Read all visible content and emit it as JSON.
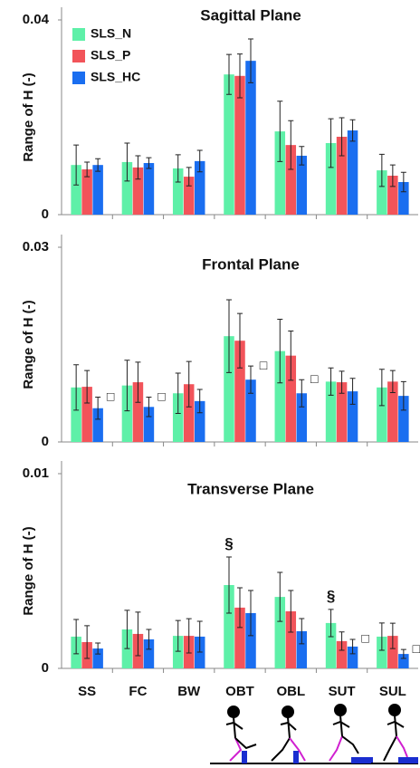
{
  "chart_data": [
    {
      "type": "bar",
      "title": "Sagittal Plane",
      "ylabel": "Range of H (-)",
      "ylim": [
        0,
        0.04
      ],
      "yticks": [
        0,
        0.04
      ],
      "series": [
        {
          "name": "SLS_N",
          "color": "#5ef0a8",
          "values": [
            0.0102,
            0.0108,
            0.0095,
            0.0288,
            0.0171,
            0.0147,
            0.0091
          ],
          "errors": [
            0.0041,
            0.0039,
            0.0028,
            0.0041,
            0.0062,
            0.005,
            0.0033
          ]
        },
        {
          "name": "SLS_P",
          "color": "#f2545a",
          "values": [
            0.0093,
            0.0097,
            0.0078,
            0.0285,
            0.0143,
            0.016,
            0.008
          ],
          "errors": [
            0.0015,
            0.0024,
            0.0019,
            0.0045,
            0.005,
            0.0039,
            0.0022
          ]
        },
        {
          "name": "SLS_HC",
          "color": "#1a6ef0",
          "values": [
            0.0102,
            0.0106,
            0.011,
            0.0316,
            0.0121,
            0.0173,
            0.0067
          ],
          "errors": [
            0.0013,
            0.0011,
            0.0022,
            0.0045,
            0.0019,
            0.0022,
            0.002
          ]
        }
      ]
    },
    {
      "type": "bar",
      "title": "Frontal Plane",
      "ylabel": "Range of H (-)",
      "ylim": [
        0,
        0.03
      ],
      "yticks": [
        0,
        0.03
      ],
      "series": [
        {
          "color": "#5ef0a8",
          "values": [
            0.0084,
            0.0087,
            0.0075,
            0.0163,
            0.014,
            0.0093,
            0.0084
          ],
          "errors": [
            0.0035,
            0.0039,
            0.0031,
            0.0056,
            0.0049,
            0.0021,
            0.0028
          ]
        },
        {
          "color": "#f2545a",
          "values": [
            0.0085,
            0.0092,
            0.0089,
            0.0156,
            0.0133,
            0.0092,
            0.0093
          ],
          "errors": [
            0.0025,
            0.0031,
            0.0035,
            0.0042,
            0.0038,
            0.0017,
            0.0017
          ]
        },
        {
          "color": "#1a6ef0",
          "values": [
            0.0052,
            0.0054,
            0.0063,
            0.0096,
            0.0075,
            0.0078,
            0.0071
          ],
          "errors": [
            0.0017,
            0.0015,
            0.0018,
            0.0021,
            0.0021,
            0.002,
            0.0022
          ],
          "annotations": [
            "□",
            "□",
            null,
            "□",
            "□",
            null,
            null
          ]
        }
      ]
    },
    {
      "type": "bar",
      "title": "Transverse Plane",
      "ylabel": "Range of H (-)",
      "ylim": [
        0,
        0.01
      ],
      "yticks": [
        0,
        0.01
      ],
      "categories": [
        "SS",
        "FC",
        "BW",
        "OBT",
        "OBL",
        "SUT",
        "SUL"
      ],
      "series": [
        {
          "color": "#5ef0a8",
          "values": [
            0.00163,
            0.002,
            0.00167,
            0.00428,
            0.00367,
            0.00233,
            0.00163
          ],
          "errors": [
            0.00088,
            0.00098,
            0.00079,
            0.00144,
            0.00126,
            0.0007,
            0.0007
          ],
          "annotations": [
            null,
            null,
            null,
            "§",
            null,
            "§",
            null
          ]
        },
        {
          "color": "#f2545a",
          "values": [
            0.00135,
            0.00177,
            0.00167,
            0.00312,
            0.00293,
            0.0014,
            0.00167
          ],
          "errors": [
            0.00084,
            0.00112,
            0.00088,
            0.00102,
            0.00107,
            0.00047,
            0.00065
          ]
        },
        {
          "color": "#1a6ef0",
          "values": [
            0.00102,
            0.00149,
            0.00163,
            0.00284,
            0.00191,
            0.00112,
            0.00074
          ],
          "errors": [
            0.00028,
            0.00051,
            0.00079,
            0.00116,
            0.00065,
            0.00037,
            0.00023
          ],
          "annotations": [
            null,
            null,
            null,
            null,
            null,
            "□",
            "□"
          ]
        }
      ]
    }
  ]
}
